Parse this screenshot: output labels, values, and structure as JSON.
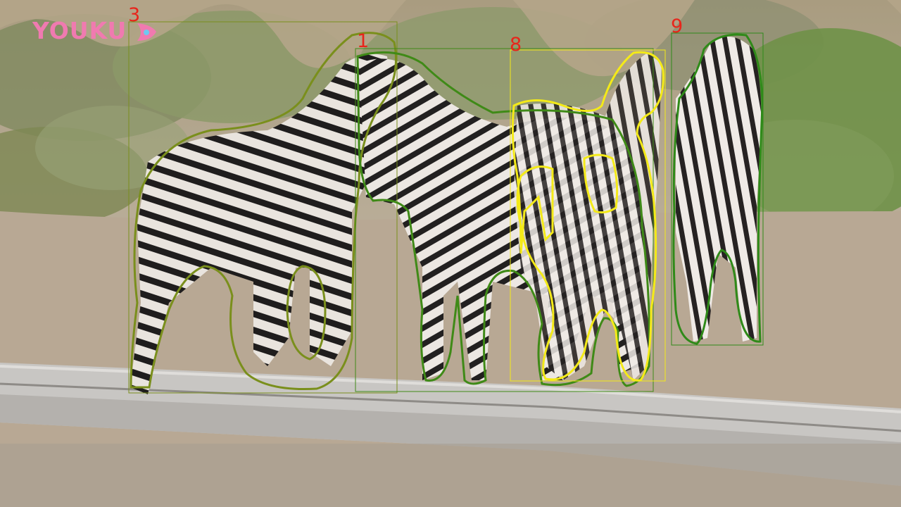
{
  "watermark": {
    "text": "YOUKU",
    "icon": "youku-play-icon",
    "color": "#f07ab0"
  },
  "detections": [
    {
      "id": "3",
      "color": "#7a8f1c"
    },
    {
      "id": "1",
      "color": "#3f8a17"
    },
    {
      "id": "8",
      "color": "#f4ea18"
    },
    {
      "id": "9",
      "color": "#2f8a19"
    }
  ],
  "label_color": "#e8251b"
}
